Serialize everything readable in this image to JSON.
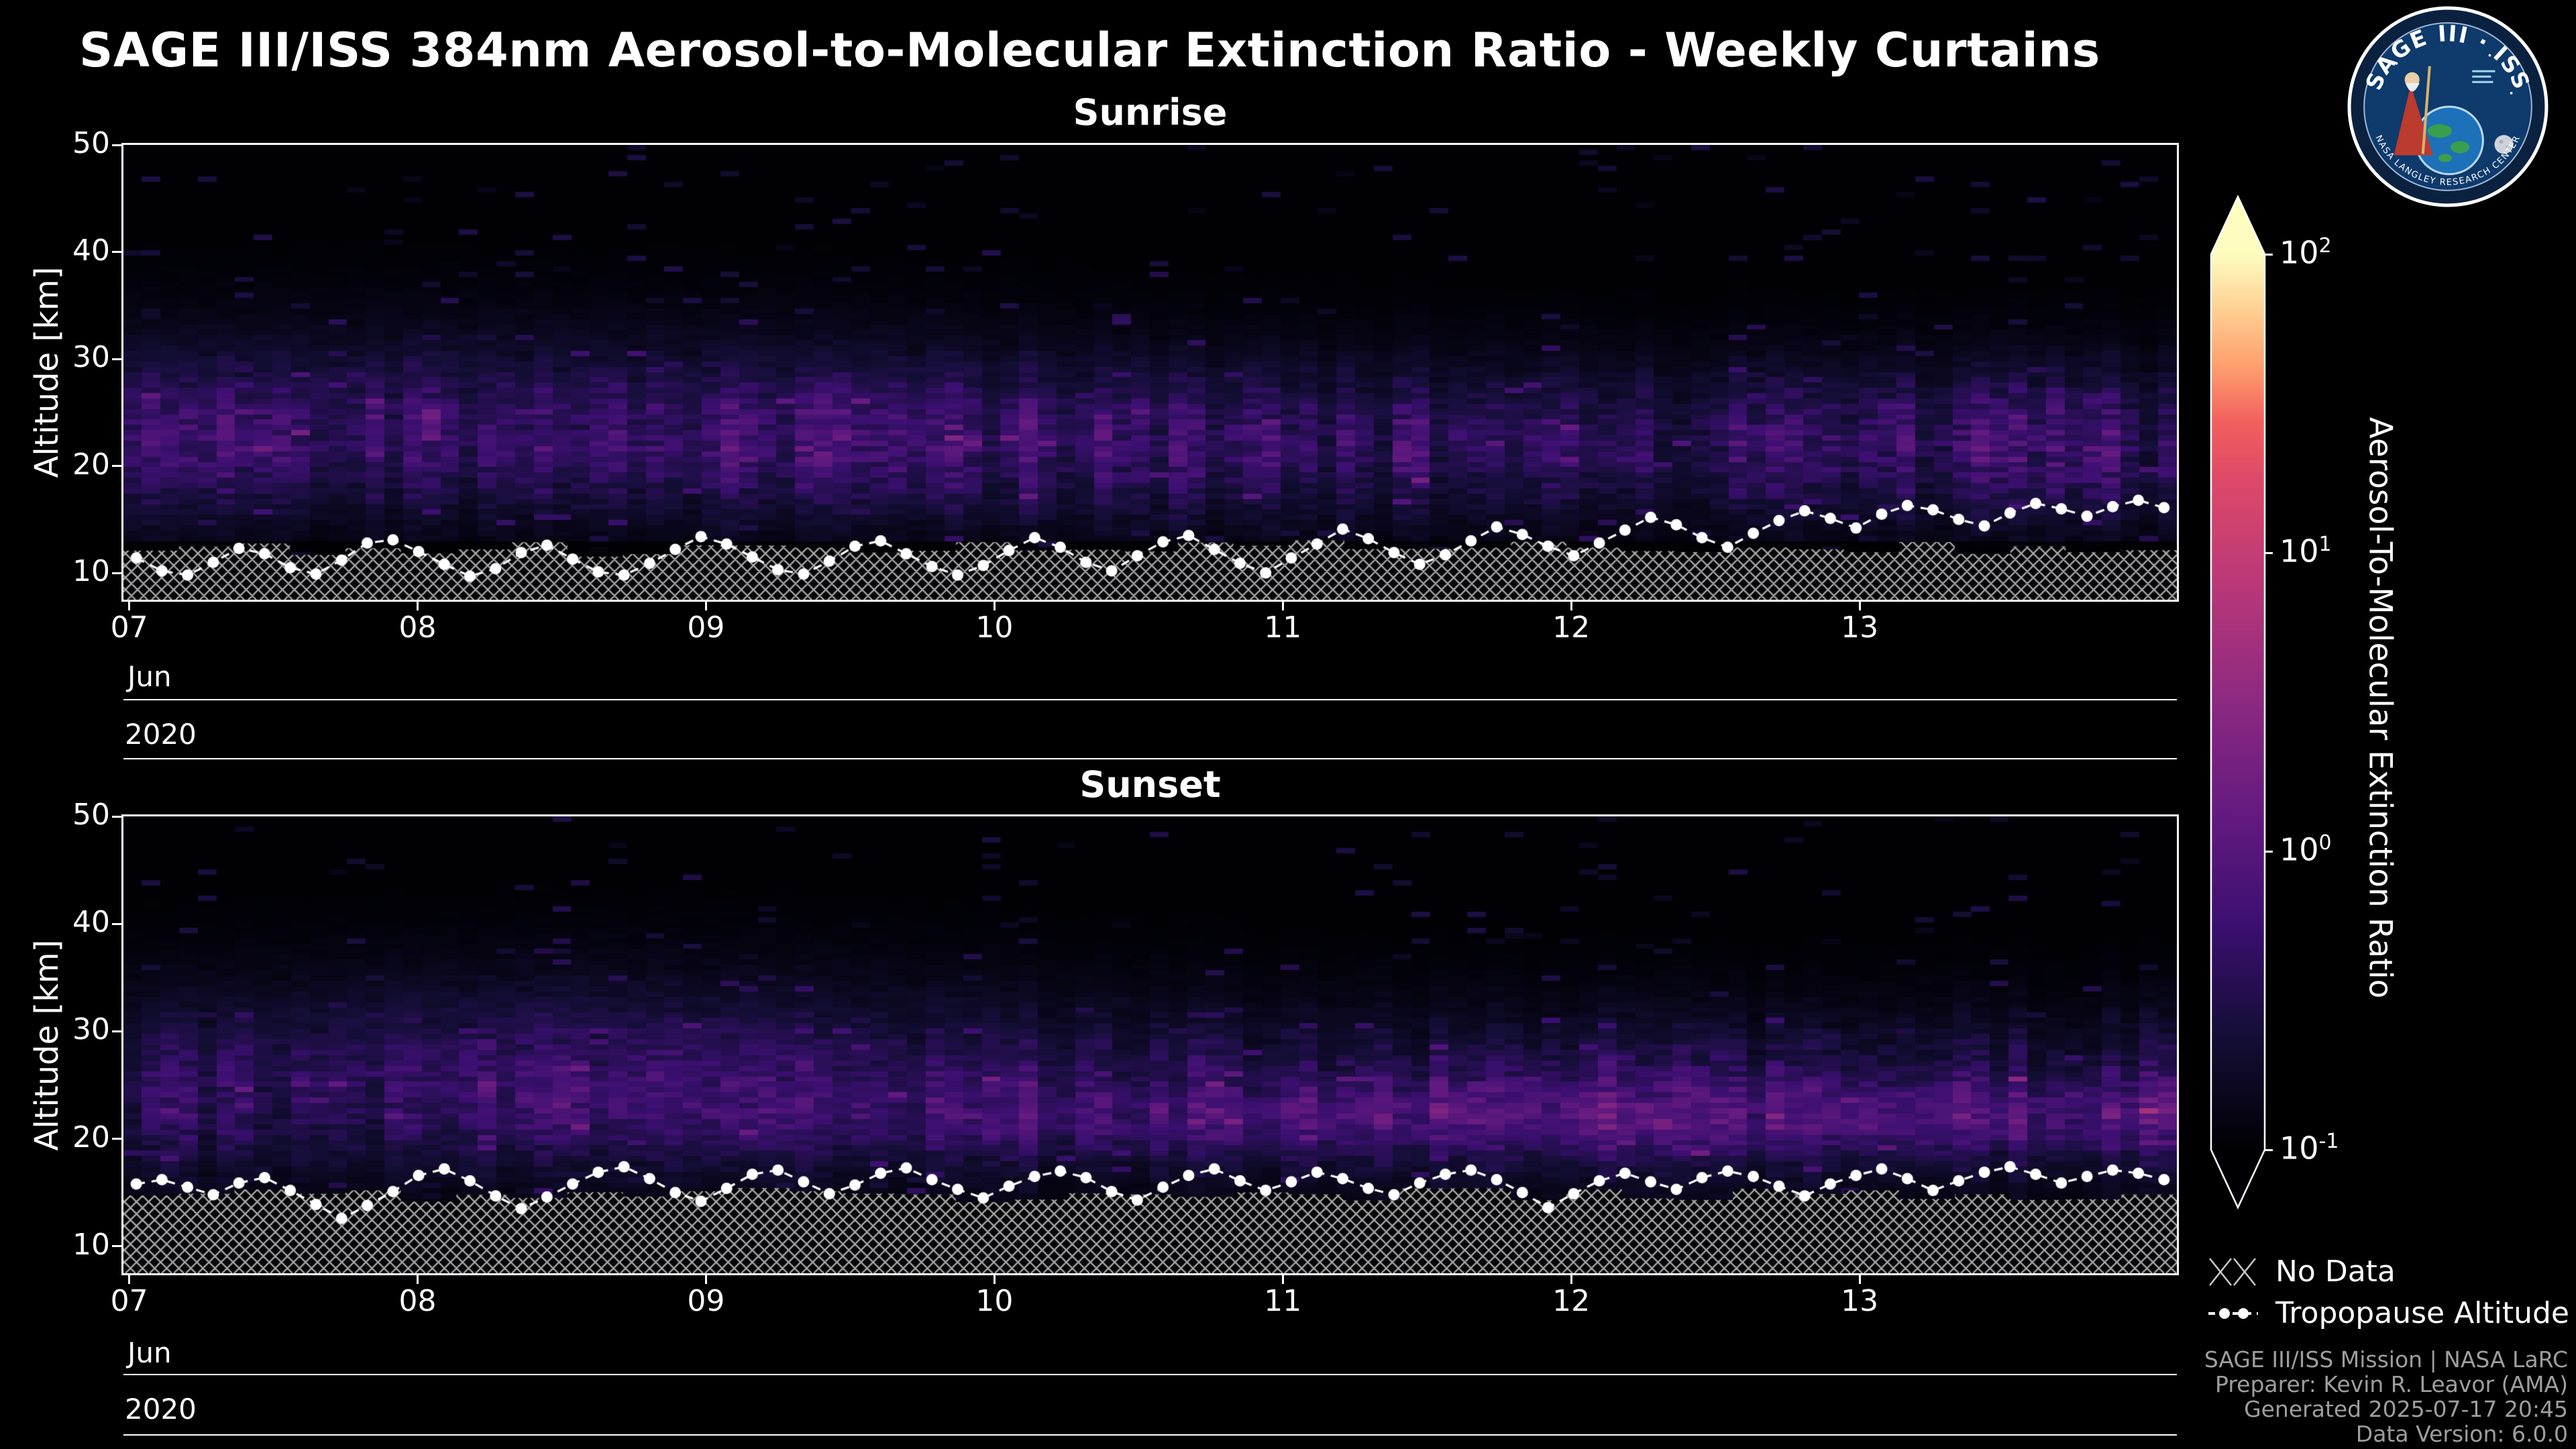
{
  "title": "SAGE III/ISS 384nm Aerosol-to-Molecular Extinction Ratio - Weekly Curtains",
  "logo": {
    "arc_text": "SAGE III · ISS",
    "rim_text": "NASA LANGLEY RESEARCH CENTER"
  },
  "colorbar": {
    "label": "Aerosol-To-Molecular Extinction Ratio",
    "scale": "log",
    "range": [
      0.1,
      100
    ],
    "tick_values": [
      100,
      10,
      1,
      0.1
    ],
    "tick_exponents": [
      "2",
      "1",
      "0",
      "-1"
    ],
    "colormap": "magma",
    "colormap_stops": [
      [
        0,
        "#000004"
      ],
      [
        0.125,
        "#140e36"
      ],
      [
        0.25,
        "#3b0f70"
      ],
      [
        0.375,
        "#641a80"
      ],
      [
        0.5,
        "#8c2981"
      ],
      [
        0.625,
        "#b73779"
      ],
      [
        0.75,
        "#de4968"
      ],
      [
        0.8125,
        "#f1605d"
      ],
      [
        0.875,
        "#fe9f6d"
      ],
      [
        0.9375,
        "#fecf92"
      ],
      [
        1,
        "#fcfdbf"
      ]
    ]
  },
  "legend": [
    {
      "label": "No Data",
      "swatch": "crosshatch"
    },
    {
      "label": "Tropopause Altitude",
      "swatch": "dashed-dot-line"
    }
  ],
  "footer": {
    "lines": [
      "SAGE III/ISS Mission | NASA LaRC",
      "Preparer: Kevin R. Leavor (AMA)",
      "Generated 2025-07-17 20:45",
      "Data Version: 6.0.0"
    ]
  },
  "grid": {
    "nx": 110,
    "ny": 86,
    "hatch_spacing": 18
  },
  "chart_data": [
    {
      "id": "sunrise",
      "type": "heatmap",
      "title": "Sunrise",
      "ylabel": "Altitude [km]",
      "xlabel": "",
      "x_axis_levels": [
        "Jun",
        "2020"
      ],
      "x_tick_labels": [
        "07",
        "08",
        "09",
        "10",
        "11",
        "12",
        "13"
      ],
      "x_tick_days": [
        7,
        8,
        9,
        10,
        11,
        12,
        13
      ],
      "x_range_days": [
        6.98,
        14.1
      ],
      "ylim": [
        7.5,
        50
      ],
      "y_tick_values": [
        50,
        40,
        30,
        20,
        10
      ],
      "value_scale": "log10_extinction_ratio",
      "value_range_log10": [
        -1,
        2
      ],
      "band": {
        "center_km": 22.0,
        "sigma_km": 5.2,
        "amplitude": 0.62,
        "speckle": 0.03
      },
      "plume": {
        "frac_center": 0.15,
        "frac_sigma": 0.25,
        "center_km": 27,
        "sigma_km": 6,
        "amplitude": 0.2
      },
      "nodata_top_km": 12.3,
      "nodata_jitter_km": 1.6,
      "seed": 42,
      "tropopause_km": [
        11.4,
        10.2,
        9.8,
        11.0,
        12.3,
        11.8,
        10.5,
        9.9,
        11.2,
        12.8,
        13.1,
        12.0,
        10.8,
        9.7,
        10.4,
        11.9,
        12.6,
        11.3,
        10.1,
        9.8,
        10.9,
        12.2,
        13.4,
        12.7,
        11.5,
        10.3,
        9.9,
        11.1,
        12.5,
        13.0,
        11.8,
        10.6,
        9.8,
        10.7,
        12.1,
        13.3,
        12.4,
        11.0,
        10.2,
        11.6,
        12.9,
        13.5,
        12.2,
        10.9,
        10.0,
        11.4,
        12.7,
        14.1,
        13.2,
        11.9,
        10.8,
        11.7,
        13.0,
        14.3,
        13.6,
        12.5,
        11.6,
        12.8,
        14.0,
        15.2,
        14.5,
        13.3,
        12.4,
        13.7,
        14.9,
        15.8,
        15.1,
        14.2,
        15.5,
        16.3,
        15.9,
        15.0,
        14.4,
        15.6,
        16.5,
        16.0,
        15.3,
        16.2,
        16.8,
        16.1
      ]
    },
    {
      "id": "sunset",
      "type": "heatmap",
      "title": "Sunset",
      "ylabel": "Altitude [km]",
      "xlabel": "",
      "x_axis_levels": [
        "Jun",
        "2020"
      ],
      "x_tick_labels": [
        "07",
        "08",
        "09",
        "10",
        "11",
        "12",
        "13"
      ],
      "x_tick_days": [
        7,
        8,
        9,
        10,
        11,
        12,
        13
      ],
      "x_range_days": [
        6.98,
        14.1
      ],
      "ylim": [
        7.5,
        50
      ],
      "y_tick_values": [
        50,
        40,
        30,
        20,
        10
      ],
      "value_scale": "log10_extinction_ratio",
      "value_range_log10": [
        -1,
        2
      ],
      "band": {
        "center_km": 23.5,
        "sigma_km": 5.5,
        "amplitude": 0.55,
        "speckle": 0.03
      },
      "band2": {
        "center_km": 21.8,
        "sigma_km": 2.3,
        "amplitude": 0.42,
        "start": 0.15,
        "full": 0.62
      },
      "plume": {
        "frac_center": 0.22,
        "frac_sigma": 0.18,
        "center_km": 29,
        "sigma_km": 6,
        "amplitude": 0.26
      },
      "nodata_top_km": 14.8,
      "nodata_jitter_km": 1.4,
      "seed": 77,
      "tropopause_km": [
        15.8,
        16.2,
        15.5,
        14.8,
        15.9,
        16.4,
        15.2,
        13.9,
        12.6,
        13.8,
        15.1,
        16.6,
        17.2,
        16.1,
        14.7,
        13.5,
        14.6,
        15.8,
        16.9,
        17.4,
        16.3,
        15.0,
        14.2,
        15.4,
        16.7,
        17.1,
        16.0,
        14.9,
        15.7,
        16.8,
        17.3,
        16.2,
        15.3,
        14.5,
        15.6,
        16.5,
        17.0,
        16.4,
        15.1,
        14.3,
        15.5,
        16.6,
        17.2,
        16.1,
        15.2,
        16.0,
        16.9,
        16.3,
        15.4,
        14.8,
        15.9,
        16.7,
        17.1,
        16.2,
        15.0,
        13.6,
        14.9,
        16.1,
        16.8,
        16.0,
        15.3,
        16.4,
        17.0,
        16.5,
        15.6,
        14.7,
        15.8,
        16.6,
        17.2,
        16.3,
        15.2,
        16.1,
        16.9,
        17.4,
        16.7,
        15.9,
        16.5,
        17.1,
        16.8,
        16.2
      ]
    }
  ]
}
